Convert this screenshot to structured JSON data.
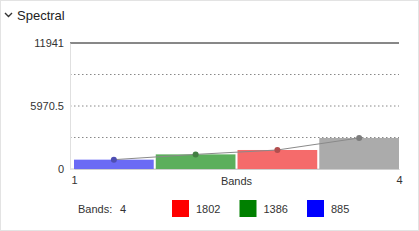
{
  "chart_data": {
    "type": "bar",
    "title": "Spectral",
    "x_label": "Bands",
    "values": [
      885,
      1386,
      1802,
      2940
    ],
    "colors": [
      "#6b6bf5",
      "#5caf5c",
      "#f56b6b",
      "#ababab"
    ],
    "marker": "circle",
    "line_style": "solid",
    "xlim": [
      1,
      4
    ],
    "xticks": [
      1,
      4
    ],
    "ylim": [
      0,
      11941
    ],
    "yticks": [
      0,
      5970.5,
      11941
    ],
    "minor_yticks": [
      2985.25,
      8955.75
    ],
    "grid": true,
    "legend_title": "Bands:",
    "band_count": 4,
    "rgb_legend": [
      {
        "color": "#ff0000",
        "value": 1802
      },
      {
        "color": "#008000",
        "value": 1386
      },
      {
        "color": "#0000ff",
        "value": 885
      }
    ]
  }
}
